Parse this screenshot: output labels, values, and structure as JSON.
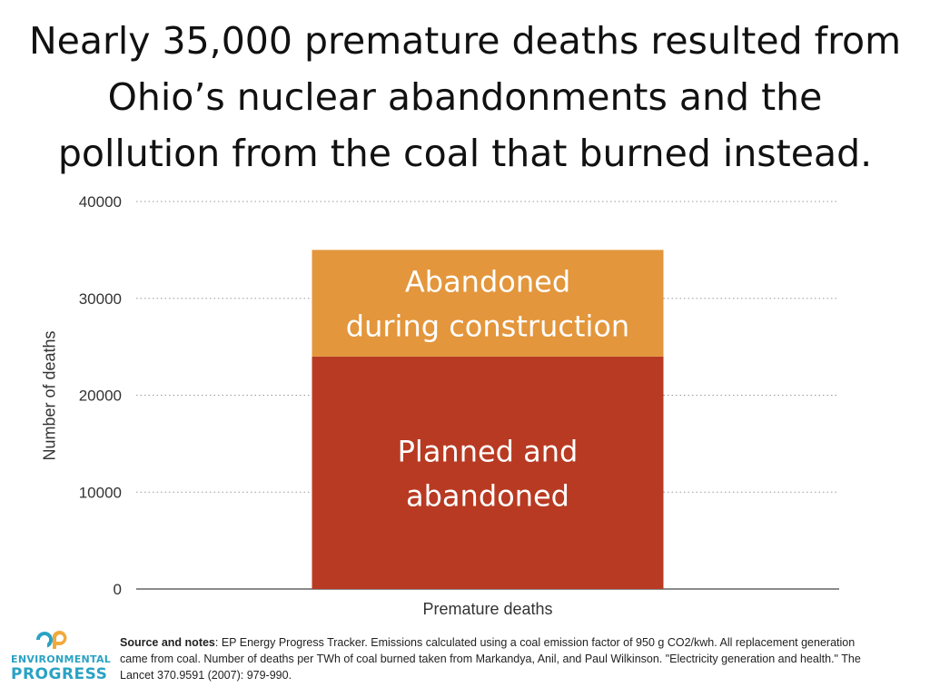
{
  "title_lines": [
    "Nearly 35,000 premature deaths resulted from",
    "Ohio’s nuclear abandonments and the",
    "pollution from the coal that burned instead."
  ],
  "chart_data": {
    "type": "bar",
    "stacked": true,
    "categories": [
      "Premature deaths"
    ],
    "series": [
      {
        "name": "Planned and abandoned",
        "label_lines": [
          "Planned and",
          "abandoned"
        ],
        "values": [
          24000
        ],
        "color": "#b83a22"
      },
      {
        "name": "Abandoned during construction",
        "label_lines": [
          "Abandoned",
          "during construction"
        ],
        "values": [
          11000
        ],
        "color": "#e3963c"
      }
    ],
    "ylabel": "Number of deaths",
    "xlabel": "",
    "ylim": [
      0,
      40000
    ],
    "yticks": [
      0,
      10000,
      20000,
      30000,
      40000
    ],
    "grid": true,
    "legend": "none"
  },
  "footer": {
    "logo_mark": "ep",
    "logo_line1": "ENVIRONMENTAL",
    "logo_line2": "PROGRESS",
    "source_label": "Source and notes",
    "source_text": ": EP Energy Progress Tracker. Emissions calculated using a coal emission factor of 950 g CO2/kwh. All replacement generation came from coal. Number of deaths per TWh of coal burned taken from Markandya, Anil, and Paul Wilkinson. \"Electricity generation and health.\" The Lancet 370.9591 (2007): 979-990."
  },
  "colors": {
    "logo": "#2aa2c4",
    "logo_accent": "#f2a93b",
    "grid": "#9a9a9a",
    "bar_label": "#ffffff"
  }
}
